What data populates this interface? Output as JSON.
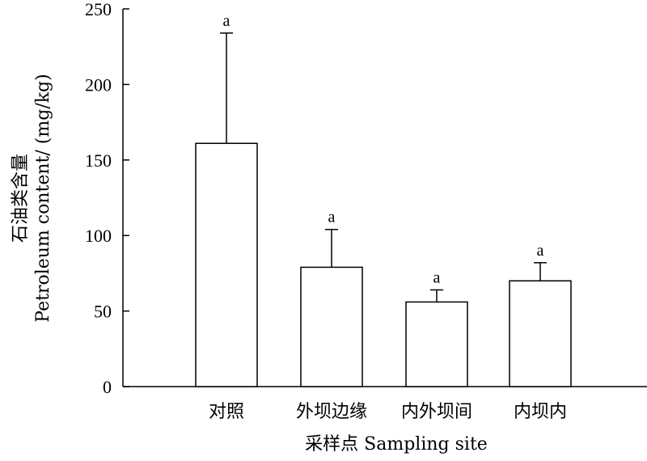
{
  "chart_data": {
    "type": "bar",
    "categories": [
      "对照",
      "外坝边缘",
      "内外坝间",
      "内坝内"
    ],
    "values": [
      161,
      79,
      56,
      70
    ],
    "error_upper": [
      234,
      104,
      64,
      82
    ],
    "significance": [
      "a",
      "a",
      "a",
      "a"
    ],
    "xlabel": "采样点 Sampling site",
    "ylabel_cn": "石油类含量",
    "ylabel_en": "Petroleum content/ (mg/kg)",
    "ylim": [
      0,
      250
    ],
    "yticks": [
      0,
      50,
      100,
      150,
      200,
      250
    ],
    "grid": false,
    "bar_fill": "#ffffff",
    "stroke_color": "#000000"
  }
}
